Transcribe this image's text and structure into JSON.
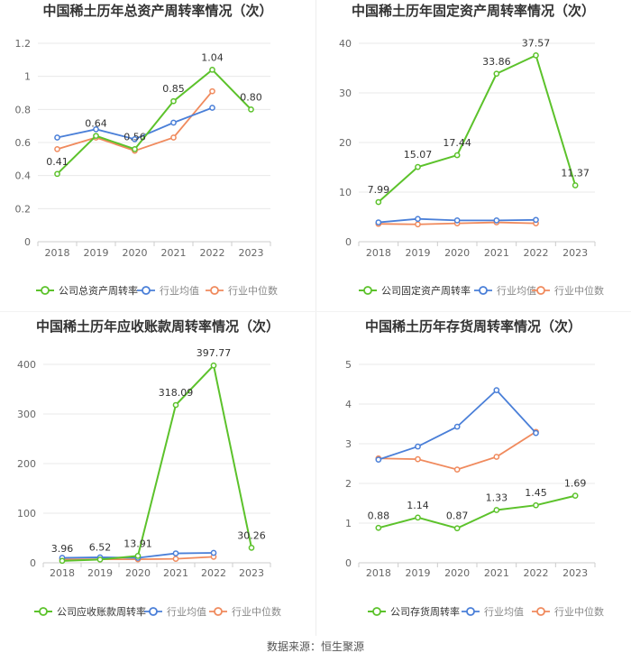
{
  "source": "数据来源：恒生聚源",
  "colors": {
    "company": "#5cc22b",
    "avg": "#4a7fd8",
    "median": "#f08a5d",
    "grid": "#e8e8e8",
    "axis_text": "#666666",
    "title": "#333333",
    "label": "#333333"
  },
  "chart_data": [
    {
      "type": "line",
      "title": "中国稀土历年总资产周转率情况（次）",
      "categories": [
        "2018",
        "2019",
        "2020",
        "2021",
        "2022",
        "2023"
      ],
      "ylim": [
        0,
        1.2
      ],
      "yticks": [
        "0",
        "0.2",
        "0.4",
        "0.6",
        "0.8",
        "1",
        "1.2"
      ],
      "ytick_values": [
        0,
        0.2,
        0.4,
        0.6,
        0.8,
        1.0,
        1.2
      ],
      "series": [
        {
          "name": "公司总资产周转率",
          "key": "company",
          "values": [
            0.41,
            0.64,
            0.56,
            0.85,
            1.04,
            0.8
          ],
          "labels": [
            "0.41",
            "0.64",
            "0.56",
            "0.85",
            "1.04",
            "0.80"
          ]
        },
        {
          "name": "行业均值",
          "key": "avg",
          "values": [
            0.63,
            0.68,
            0.62,
            0.72,
            0.81,
            null
          ]
        },
        {
          "name": "行业中位数",
          "key": "median",
          "values": [
            0.56,
            0.63,
            0.55,
            0.63,
            0.91,
            null
          ]
        }
      ]
    },
    {
      "type": "line",
      "title": "中国稀土历年固定资产周转率情况（次）",
      "categories": [
        "2018",
        "2019",
        "2020",
        "2021",
        "2022",
        "2023"
      ],
      "ylim": [
        0,
        40
      ],
      "yticks": [
        "0",
        "10",
        "20",
        "30",
        "40"
      ],
      "ytick_values": [
        0,
        10,
        20,
        30,
        40
      ],
      "series": [
        {
          "name": "公司固定资产周转率",
          "key": "company",
          "values": [
            7.99,
            15.07,
            17.44,
            33.86,
            37.57,
            11.37
          ],
          "labels": [
            "7.99",
            "15.07",
            "17.44",
            "33.86",
            "37.57",
            "11.37"
          ]
        },
        {
          "name": "行业均值",
          "key": "avg",
          "values": [
            3.9,
            4.6,
            4.3,
            4.3,
            4.4,
            null
          ]
        },
        {
          "name": "行业中位数",
          "key": "median",
          "values": [
            3.6,
            3.5,
            3.7,
            3.9,
            3.7,
            null
          ]
        }
      ]
    },
    {
      "type": "line",
      "title": "中国稀土历年应收账款周转率情况（次）",
      "categories": [
        "2018",
        "2019",
        "2020",
        "2021",
        "2022",
        "2023"
      ],
      "ylim": [
        0,
        400
      ],
      "yticks": [
        "0",
        "100",
        "200",
        "300",
        "400"
      ],
      "ytick_values": [
        0,
        100,
        200,
        300,
        400
      ],
      "series": [
        {
          "name": "公司应收账款周转率",
          "key": "company",
          "values": [
            3.96,
            6.52,
            13.91,
            318.09,
            397.77,
            30.26
          ],
          "labels": [
            "3.96",
            "6.52",
            "13.91",
            "318.09",
            "397.77",
            "30.26"
          ]
        },
        {
          "name": "行业均值",
          "key": "avg",
          "values": [
            10,
            11,
            10,
            19,
            20,
            null
          ]
        },
        {
          "name": "行业中位数",
          "key": "median",
          "values": [
            7,
            7,
            7,
            8,
            12,
            null
          ]
        }
      ]
    },
    {
      "type": "line",
      "title": "中国稀土历年存货周转率情况（次）",
      "categories": [
        "2018",
        "2019",
        "2020",
        "2021",
        "2022",
        "2023"
      ],
      "ylim": [
        0,
        5
      ],
      "yticks": [
        "0",
        "1",
        "2",
        "3",
        "4",
        "5"
      ],
      "ytick_values": [
        0,
        1,
        2,
        3,
        4,
        5
      ],
      "series": [
        {
          "name": "公司存货周转率",
          "key": "company",
          "values": [
            0.88,
            1.14,
            0.87,
            1.33,
            1.45,
            1.69
          ],
          "labels": [
            "0.88",
            "1.14",
            "0.87",
            "1.33",
            "1.45",
            "1.69"
          ]
        },
        {
          "name": "行业均值",
          "key": "avg",
          "values": [
            2.6,
            2.93,
            3.43,
            4.35,
            3.27,
            null
          ]
        },
        {
          "name": "行业中位数",
          "key": "median",
          "values": [
            2.63,
            2.61,
            2.35,
            2.67,
            3.3,
            null
          ]
        }
      ]
    }
  ]
}
